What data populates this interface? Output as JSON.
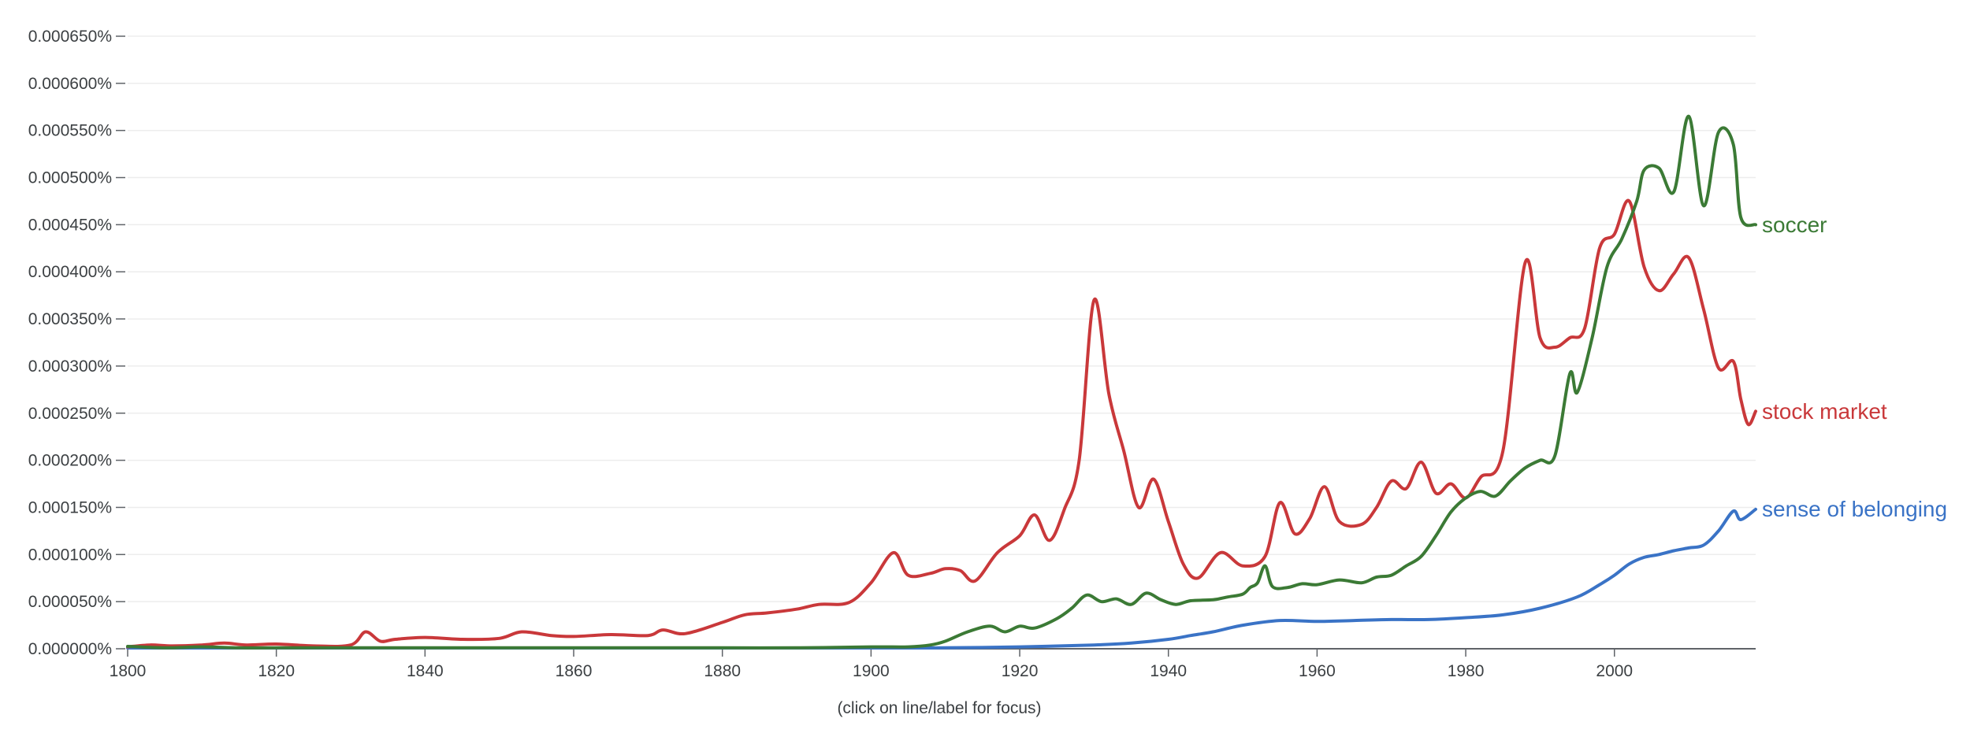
{
  "caption": "(click on line/label for focus)",
  "chart_data": {
    "type": "line",
    "title": "",
    "xlabel": "",
    "ylabel": "",
    "xlim": [
      1800,
      2019
    ],
    "ylim": [
      0,
      0.00065
    ],
    "grid": true,
    "legend": "inline labels at line ends",
    "x_ticks": [
      1800,
      1820,
      1840,
      1860,
      1880,
      1900,
      1920,
      1940,
      1960,
      1980,
      2000
    ],
    "x_tick_labels": [
      "1800",
      "1820",
      "1840",
      "1860",
      "1880",
      "1900",
      "1920",
      "1940",
      "1960",
      "1980",
      "2000"
    ],
    "y_ticks": [
      0,
      5e-05,
      0.0001,
      0.00015,
      0.0002,
      0.00025,
      0.0003,
      0.00035,
      0.0004,
      0.00045,
      0.0005,
      0.00055,
      0.0006,
      0.00065
    ],
    "y_tick_labels": [
      "0.000000%",
      "0.000050%",
      "0.000100%",
      "0.000150%",
      "0.000200%",
      "0.000250%",
      "0.000300%",
      "0.000350%",
      "0.000400%",
      "0.000450%",
      "0.000500%",
      "0.000550%",
      "0.000600%",
      "0.000650%"
    ],
    "series": [
      {
        "name": "soccer",
        "color": "#3b7a35",
        "points": [
          [
            1800,
            2.5e-06
          ],
          [
            1805,
            1e-06
          ],
          [
            1810,
            2e-06
          ],
          [
            1815,
            1e-06
          ],
          [
            1820,
            1e-06
          ],
          [
            1830,
            1e-06
          ],
          [
            1840,
            1e-06
          ],
          [
            1850,
            1e-06
          ],
          [
            1860,
            1e-06
          ],
          [
            1870,
            1e-06
          ],
          [
            1880,
            1e-06
          ],
          [
            1890,
            1e-06
          ],
          [
            1900,
            2e-06
          ],
          [
            1905,
            2e-06
          ],
          [
            1908,
            4e-06
          ],
          [
            1910,
            8e-06
          ],
          [
            1913,
            1.8e-05
          ],
          [
            1916,
            2.4e-05
          ],
          [
            1918,
            1.8e-05
          ],
          [
            1920,
            2.4e-05
          ],
          [
            1922,
            2.2e-05
          ],
          [
            1925,
            3.2e-05
          ],
          [
            1927,
            4.3e-05
          ],
          [
            1929,
            5.7e-05
          ],
          [
            1931,
            5e-05
          ],
          [
            1933,
            5.3e-05
          ],
          [
            1935,
            4.7e-05
          ],
          [
            1937,
            5.9e-05
          ],
          [
            1939,
            5.2e-05
          ],
          [
            1941,
            4.7e-05
          ],
          [
            1943,
            5.1e-05
          ],
          [
            1946,
            5.2e-05
          ],
          [
            1948,
            5.5e-05
          ],
          [
            1950,
            5.8e-05
          ],
          [
            1951,
            6.5e-05
          ],
          [
            1952,
            7e-05
          ],
          [
            1953,
            8.8e-05
          ],
          [
            1954,
            6.6e-05
          ],
          [
            1956,
            6.5e-05
          ],
          [
            1958,
            6.9e-05
          ],
          [
            1960,
            6.8e-05
          ],
          [
            1963,
            7.3e-05
          ],
          [
            1966,
            7e-05
          ],
          [
            1968,
            7.6e-05
          ],
          [
            1970,
            7.8e-05
          ],
          [
            1972,
            8.8e-05
          ],
          [
            1974,
            9.8e-05
          ],
          [
            1976,
            0.00012
          ],
          [
            1978,
            0.000145
          ],
          [
            1980,
            0.00016
          ],
          [
            1982,
            0.000167
          ],
          [
            1984,
            0.000162
          ],
          [
            1986,
            0.000178
          ],
          [
            1988,
            0.000192
          ],
          [
            1990,
            0.0002
          ],
          [
            1992,
            0.000205
          ],
          [
            1994,
            0.000292
          ],
          [
            1995,
            0.000272
          ],
          [
            1997,
            0.00033
          ],
          [
            1999,
            0.000405
          ],
          [
            2001,
            0.000435
          ],
          [
            2003,
            0.000475
          ],
          [
            2004,
            0.000508
          ],
          [
            2006,
            0.00051
          ],
          [
            2008,
            0.000485
          ],
          [
            2010,
            0.000565
          ],
          [
            2012,
            0.00047
          ],
          [
            2014,
            0.000548
          ],
          [
            2016,
            0.000535
          ],
          [
            2017,
            0.000458
          ],
          [
            2019,
            0.00045
          ]
        ]
      },
      {
        "name": "stock market",
        "color": "#c9383a",
        "points": [
          [
            1800,
            2e-06
          ],
          [
            1803,
            4e-06
          ],
          [
            1806,
            3e-06
          ],
          [
            1810,
            4e-06
          ],
          [
            1813,
            6e-06
          ],
          [
            1816,
            4e-06
          ],
          [
            1820,
            5e-06
          ],
          [
            1825,
            3e-06
          ],
          [
            1830,
            4e-06
          ],
          [
            1832,
            1.8e-05
          ],
          [
            1834,
            8e-06
          ],
          [
            1836,
            1e-05
          ],
          [
            1840,
            1.2e-05
          ],
          [
            1845,
            1e-05
          ],
          [
            1850,
            1.1e-05
          ],
          [
            1853,
            1.8e-05
          ],
          [
            1857,
            1.4e-05
          ],
          [
            1860,
            1.3e-05
          ],
          [
            1865,
            1.5e-05
          ],
          [
            1870,
            1.4e-05
          ],
          [
            1872,
            2e-05
          ],
          [
            1875,
            1.6e-05
          ],
          [
            1880,
            2.8e-05
          ],
          [
            1883,
            3.6e-05
          ],
          [
            1886,
            3.8e-05
          ],
          [
            1890,
            4.2e-05
          ],
          [
            1893,
            4.7e-05
          ],
          [
            1897,
            4.9e-05
          ],
          [
            1900,
            7e-05
          ],
          [
            1903,
            0.000102
          ],
          [
            1905,
            7.8e-05
          ],
          [
            1908,
            8e-05
          ],
          [
            1910,
            8.5e-05
          ],
          [
            1912,
            8.3e-05
          ],
          [
            1914,
            7.2e-05
          ],
          [
            1917,
            0.000102
          ],
          [
            1920,
            0.00012
          ],
          [
            1922,
            0.000142
          ],
          [
            1924,
            0.000115
          ],
          [
            1926,
            0.000148
          ],
          [
            1928,
            0.0002
          ],
          [
            1930,
            0.00037
          ],
          [
            1932,
            0.00027
          ],
          [
            1934,
            0.00021
          ],
          [
            1936,
            0.00015
          ],
          [
            1938,
            0.00018
          ],
          [
            1940,
            0.000135
          ],
          [
            1942,
            9e-05
          ],
          [
            1944,
            7.5e-05
          ],
          [
            1947,
            0.000102
          ],
          [
            1950,
            8.8e-05
          ],
          [
            1953,
            9.8e-05
          ],
          [
            1955,
            0.000155
          ],
          [
            1957,
            0.000122
          ],
          [
            1959,
            0.000138
          ],
          [
            1961,
            0.000172
          ],
          [
            1963,
            0.000135
          ],
          [
            1966,
            0.000132
          ],
          [
            1968,
            0.00015
          ],
          [
            1970,
            0.000178
          ],
          [
            1972,
            0.00017
          ],
          [
            1974,
            0.000198
          ],
          [
            1976,
            0.000165
          ],
          [
            1978,
            0.000175
          ],
          [
            1980,
            0.00016
          ],
          [
            1982,
            0.000182
          ],
          [
            1985,
            0.00021
          ],
          [
            1988,
            0.00041
          ],
          [
            1990,
            0.00033
          ],
          [
            1992,
            0.00032
          ],
          [
            1994,
            0.00033
          ],
          [
            1996,
            0.00034
          ],
          [
            1998,
            0.000425
          ],
          [
            2000,
            0.00044
          ],
          [
            2002,
            0.000475
          ],
          [
            2004,
            0.000405
          ],
          [
            2006,
            0.00038
          ],
          [
            2008,
            0.000398
          ],
          [
            2010,
            0.000415
          ],
          [
            2012,
            0.00036
          ],
          [
            2014,
            0.000298
          ],
          [
            2016,
            0.000305
          ],
          [
            2017,
            0.000265
          ],
          [
            2018,
            0.000238
          ],
          [
            2019,
            0.000252
          ]
        ]
      },
      {
        "name": "sense of belonging",
        "color": "#3a73c6",
        "points": [
          [
            1800,
            0.0
          ],
          [
            1850,
            0.0
          ],
          [
            1900,
            0.0
          ],
          [
            1910,
            1e-06
          ],
          [
            1920,
            2e-06
          ],
          [
            1930,
            4e-06
          ],
          [
            1935,
            6e-06
          ],
          [
            1940,
            1e-05
          ],
          [
            1943,
            1.4e-05
          ],
          [
            1946,
            1.8e-05
          ],
          [
            1950,
            2.5e-05
          ],
          [
            1955,
            3e-05
          ],
          [
            1960,
            2.9e-05
          ],
          [
            1965,
            3e-05
          ],
          [
            1970,
            3.1e-05
          ],
          [
            1975,
            3.1e-05
          ],
          [
            1980,
            3.3e-05
          ],
          [
            1985,
            3.6e-05
          ],
          [
            1990,
            4.3e-05
          ],
          [
            1995,
            5.5e-05
          ],
          [
            1998,
            6.8e-05
          ],
          [
            2000,
            7.8e-05
          ],
          [
            2002,
            9e-05
          ],
          [
            2004,
            9.7e-05
          ],
          [
            2006,
            0.0001
          ],
          [
            2008,
            0.000104
          ],
          [
            2010,
            0.000107
          ],
          [
            2012,
            0.00011
          ],
          [
            2014,
            0.000125
          ],
          [
            2016,
            0.000146
          ],
          [
            2017,
            0.000137
          ],
          [
            2019,
            0.000148
          ]
        ]
      }
    ]
  }
}
